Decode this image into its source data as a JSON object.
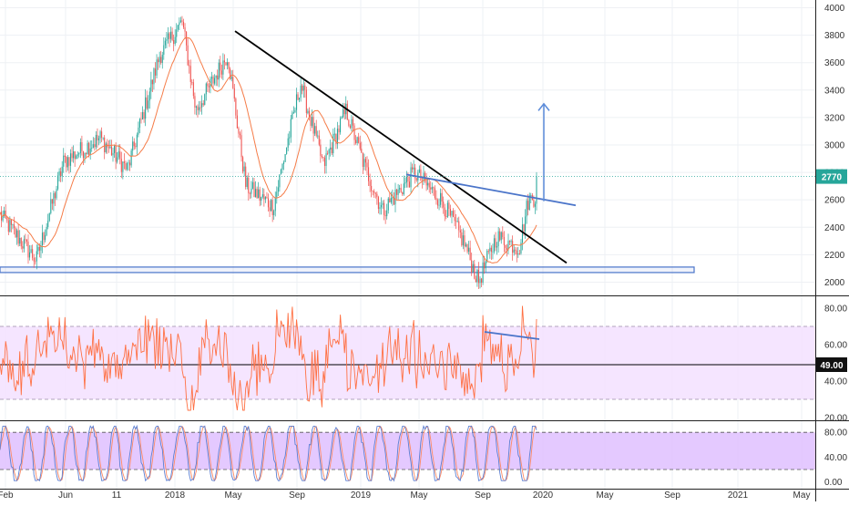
{
  "chart_data": {
    "type": "candlestick",
    "symbol": "",
    "x_axis_labels": [
      "Feb",
      "Jun",
      "11",
      "2018",
      "May",
      "Sep",
      "2019",
      "May",
      "Sep",
      "2020",
      "May",
      "Sep",
      "2021",
      "May"
    ],
    "current_price_label": "2770",
    "main_panel": {
      "y_ticks": [
        "4000",
        "3800",
        "3600",
        "3400",
        "3200",
        "3000",
        "2800",
        "2600",
        "2400",
        "2200",
        "2000"
      ],
      "ylim": [
        1930,
        4030
      ],
      "current_price": 2770,
      "moving_average_color": "#f57c48",
      "support_zone": [
        2070,
        2110
      ],
      "price_path": [
        [
          0,
          2490
        ],
        [
          40,
          2160
        ],
        [
          70,
          2880
        ],
        [
          110,
          3050
        ],
        [
          140,
          2820
        ],
        [
          175,
          3650
        ],
        [
          200,
          3900
        ],
        [
          215,
          3250
        ],
        [
          250,
          3660
        ],
        [
          270,
          2700
        ],
        [
          300,
          2550
        ],
        [
          330,
          3450
        ],
        [
          355,
          2850
        ],
        [
          380,
          3250
        ],
        [
          400,
          2850
        ],
        [
          420,
          2520
        ],
        [
          455,
          2800
        ],
        [
          485,
          2590
        ],
        [
          510,
          2280
        ],
        [
          525,
          2000
        ],
        [
          545,
          2330
        ],
        [
          570,
          2250
        ],
        [
          580,
          2600
        ],
        [
          590,
          2630
        ]
      ]
    },
    "rsi_panel": {
      "y_ticks": [
        "80.00",
        "60.00",
        "40.00",
        "20.00"
      ],
      "ylim": [
        20,
        85
      ],
      "band": [
        30,
        70
      ],
      "level_label": "49.00",
      "level": 49
    },
    "stoch_panel": {
      "y_ticks": [
        "80.00",
        "40.00",
        "0.00"
      ],
      "ylim": [
        -5,
        95
      ],
      "band": [
        20,
        80
      ]
    },
    "colors": {
      "up_candle": "#26a69a",
      "down_candle": "#ef5350",
      "trendline_black": "#000000",
      "trendline_blue": "#4a74c9",
      "arrow": "#5b8bd9",
      "rsi_line": "#ff7043",
      "band_fill": "#f3e0ff",
      "stoch_fill": "#dfc0ff",
      "price_label_bg": "#26a69a"
    }
  }
}
